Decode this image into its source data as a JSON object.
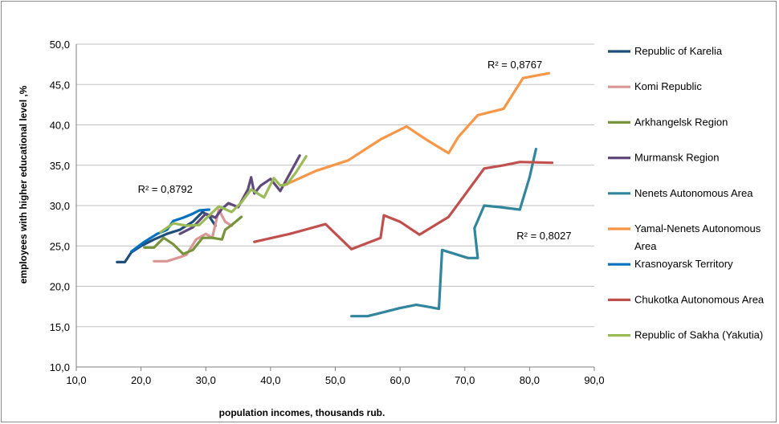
{
  "chart_data": {
    "type": "line",
    "xlabel": "population incomes, thousands rub.",
    "ylabel": "employees  with higher educational level ,%",
    "xlim": [
      10,
      90
    ],
    "ylim": [
      10,
      50
    ],
    "x_ticks": [
      "10,0",
      "20,0",
      "30,0",
      "40,0",
      "50,0",
      "60,0",
      "70,0",
      "80,0",
      "90,0"
    ],
    "y_ticks": [
      "10,0",
      "15,0",
      "20,0",
      "25,0",
      "30,0",
      "35,0",
      "40,0",
      "45,0",
      "50,0"
    ],
    "grid": "horizontal",
    "legend_position": "right",
    "annotations": [
      {
        "text": "R² = 0,8767",
        "x": 73.5,
        "y": 47.0
      },
      {
        "text": "R² = 0,8792",
        "x": 19.5,
        "y": 31.6
      },
      {
        "text": "R² = 0,8027",
        "x": 78.0,
        "y": 25.8
      }
    ],
    "series": [
      {
        "name": "Republic of Karelia",
        "color": "#1f4e79",
        "points": [
          [
            16.3,
            23.0
          ],
          [
            17.5,
            23.0
          ],
          [
            18.5,
            24.2
          ],
          [
            20.0,
            25.0
          ],
          [
            22.0,
            25.8
          ],
          [
            24.0,
            26.5
          ],
          [
            26.0,
            27.0
          ],
          [
            28.0,
            28.0
          ],
          [
            29.5,
            29.2
          ],
          [
            30.5,
            28.7
          ],
          [
            31.5,
            27.5
          ]
        ]
      },
      {
        "name": "Komi Republic",
        "color": "#d99694",
        "points": [
          [
            22.0,
            23.1
          ],
          [
            24.0,
            23.1
          ],
          [
            26.0,
            23.6
          ],
          [
            27.0,
            23.9
          ],
          [
            28.5,
            25.8
          ],
          [
            30.0,
            26.5
          ],
          [
            31.0,
            26.0
          ],
          [
            32.0,
            29.5
          ],
          [
            33.0,
            28.0
          ],
          [
            34.0,
            27.5
          ]
        ]
      },
      {
        "name": "Arkhangelsk Region",
        "color": "#77933c",
        "points": [
          [
            20.5,
            24.8
          ],
          [
            22.0,
            24.8
          ],
          [
            23.5,
            26.0
          ],
          [
            25.0,
            25.2
          ],
          [
            26.5,
            24.0
          ],
          [
            28.0,
            24.5
          ],
          [
            29.5,
            26.0
          ],
          [
            31.0,
            26.0
          ],
          [
            32.5,
            25.8
          ],
          [
            33.0,
            27.0
          ],
          [
            34.0,
            27.6
          ],
          [
            35.5,
            28.6
          ]
        ]
      },
      {
        "name": "Murmansk Region",
        "color": "#604a7b",
        "points": [
          [
            26.0,
            26.5
          ],
          [
            28.0,
            27.3
          ],
          [
            30.0,
            29.0
          ],
          [
            31.5,
            28.5
          ],
          [
            32.5,
            29.6
          ],
          [
            33.5,
            30.3
          ],
          [
            35.0,
            29.8
          ],
          [
            36.5,
            32.0
          ],
          [
            37.0,
            33.5
          ],
          [
            37.5,
            31.5
          ],
          [
            38.5,
            32.5
          ],
          [
            40.0,
            33.3
          ],
          [
            41.5,
            31.8
          ],
          [
            43.0,
            34.0
          ],
          [
            44.5,
            36.2
          ]
        ]
      },
      {
        "name": "Nenets Autonomous Area",
        "color": "#31859c",
        "points": [
          [
            52.5,
            16.3
          ],
          [
            55.0,
            16.3
          ],
          [
            57.5,
            16.8
          ],
          [
            60.0,
            17.3
          ],
          [
            62.5,
            17.7
          ],
          [
            64.0,
            17.5
          ],
          [
            66.0,
            17.2
          ],
          [
            66.5,
            24.5
          ],
          [
            68.5,
            24.0
          ],
          [
            70.5,
            23.5
          ],
          [
            72.0,
            23.5
          ],
          [
            71.5,
            27.2
          ],
          [
            73.0,
            30.0
          ],
          [
            75.5,
            29.8
          ],
          [
            78.5,
            29.5
          ],
          [
            80.0,
            33.5
          ],
          [
            81.0,
            37.0
          ]
        ]
      },
      {
        "name": "Yamal-Nenets Autonomous Area",
        "color": "#f79646",
        "points": [
          [
            42.0,
            32.5
          ],
          [
            44.0,
            33.2
          ],
          [
            47.0,
            34.3
          ],
          [
            52.0,
            35.6
          ],
          [
            57.0,
            38.2
          ],
          [
            61.0,
            39.8
          ],
          [
            64.0,
            38.2
          ],
          [
            67.5,
            36.5
          ],
          [
            69.0,
            38.5
          ],
          [
            72.0,
            41.2
          ],
          [
            76.0,
            42.0
          ],
          [
            79.0,
            45.8
          ],
          [
            83.0,
            46.4
          ]
        ]
      },
      {
        "name": "Krasnoyarsk Territory",
        "color": "#0070c0",
        "points": [
          [
            18.5,
            24.3
          ],
          [
            20.5,
            25.5
          ],
          [
            22.5,
            26.5
          ],
          [
            24.0,
            27.0
          ],
          [
            25.0,
            28.1
          ],
          [
            26.5,
            28.5
          ],
          [
            28.0,
            29.0
          ],
          [
            29.0,
            29.4
          ],
          [
            30.5,
            29.5
          ]
        ]
      },
      {
        "name": "Chukotka Autonomous Area",
        "color": "#c0504d",
        "points": [
          [
            37.5,
            25.5
          ],
          [
            43.0,
            26.5
          ],
          [
            48.5,
            27.7
          ],
          [
            52.5,
            24.6
          ],
          [
            57.0,
            26.0
          ],
          [
            57.5,
            28.8
          ],
          [
            60.0,
            28.0
          ],
          [
            63.0,
            26.4
          ],
          [
            67.5,
            28.6
          ],
          [
            73.0,
            34.6
          ],
          [
            76.0,
            35.0
          ],
          [
            78.5,
            35.4
          ],
          [
            83.5,
            35.3
          ]
        ]
      },
      {
        "name": "Republic of Sakha (Yakutia)",
        "color": "#9bbb59",
        "points": [
          [
            23.0,
            26.7
          ],
          [
            25.0,
            27.8
          ],
          [
            27.0,
            27.5
          ],
          [
            29.0,
            27.6
          ],
          [
            32.0,
            29.9
          ],
          [
            34.0,
            29.2
          ],
          [
            35.5,
            30.4
          ],
          [
            37.0,
            32.0
          ],
          [
            39.0,
            31.0
          ],
          [
            40.5,
            33.4
          ],
          [
            41.5,
            32.5
          ],
          [
            42.5,
            32.6
          ],
          [
            44.0,
            34.2
          ],
          [
            45.5,
            36.1
          ]
        ]
      }
    ]
  }
}
